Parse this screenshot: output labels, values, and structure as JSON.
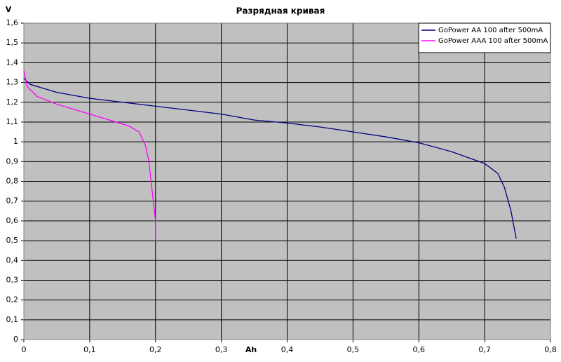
{
  "chart_data": {
    "type": "line",
    "title": "Разрядная кривая",
    "y_label": "V",
    "x_label": "Ah",
    "xlim": [
      0,
      0.8
    ],
    "ylim": [
      0,
      1.6
    ],
    "grid": true,
    "legend": "top-right",
    "xticks": [
      0,
      {
        "value": 0.1,
        "label": "0,1"
      },
      {
        "value": 0.2,
        "label": "0,2"
      },
      {
        "value": 0.3,
        "label": "0,3"
      },
      {
        "value": 0.4,
        "label": "0,4"
      },
      {
        "value": 0.5,
        "label": "0,5"
      },
      {
        "value": 0.6,
        "label": "0,6"
      },
      {
        "value": 0.7,
        "label": "0,7"
      },
      {
        "value": 0.8,
        "label": "0,8"
      }
    ],
    "yticks": [
      0,
      {
        "value": 0.1,
        "label": "0,1"
      },
      {
        "value": 0.2,
        "label": "0,2"
      },
      {
        "value": 0.3,
        "label": "0,3"
      },
      {
        "value": 0.4,
        "label": "0,4"
      },
      {
        "value": 0.5,
        "label": "0,5"
      },
      {
        "value": 0.6,
        "label": "0,6"
      },
      {
        "value": 0.7,
        "label": "0,7"
      },
      {
        "value": 0.8,
        "label": "0,8"
      },
      {
        "value": 0.9,
        "label": "0,9"
      },
      1,
      {
        "value": 1.1,
        "label": "1,1"
      },
      {
        "value": 1.2,
        "label": "1,2"
      },
      {
        "value": 1.3,
        "label": "1,3"
      },
      {
        "value": 1.4,
        "label": "1,4"
      },
      {
        "value": 1.5,
        "label": "1,5"
      },
      {
        "value": 1.6,
        "label": "1,6"
      }
    ],
    "series": [
      {
        "name": "GoPower AA 100 after 500mA",
        "color": "#000080",
        "x": [
          0,
          0.01,
          0.03,
          0.05,
          0.1,
          0.15,
          0.2,
          0.25,
          0.3,
          0.35,
          0.4,
          0.45,
          0.5,
          0.55,
          0.6,
          0.65,
          0.7,
          0.72,
          0.73,
          0.74,
          0.748
        ],
        "values": [
          1.32,
          1.29,
          1.27,
          1.25,
          1.22,
          1.2,
          1.18,
          1.16,
          1.14,
          1.11,
          1.095,
          1.075,
          1.05,
          1.025,
          0.995,
          0.95,
          0.89,
          0.84,
          0.77,
          0.65,
          0.51
        ]
      },
      {
        "name": "GoPower AAA 100 after 500mA",
        "color": "#ff00ff",
        "x": [
          0,
          0.005,
          0.02,
          0.05,
          0.1,
          0.13,
          0.16,
          0.175,
          0.185,
          0.19,
          0.195,
          0.2,
          0.2
        ],
        "values": [
          1.36,
          1.28,
          1.23,
          1.19,
          1.14,
          1.11,
          1.08,
          1.05,
          0.98,
          0.9,
          0.75,
          0.6,
          0.5
        ]
      }
    ]
  }
}
